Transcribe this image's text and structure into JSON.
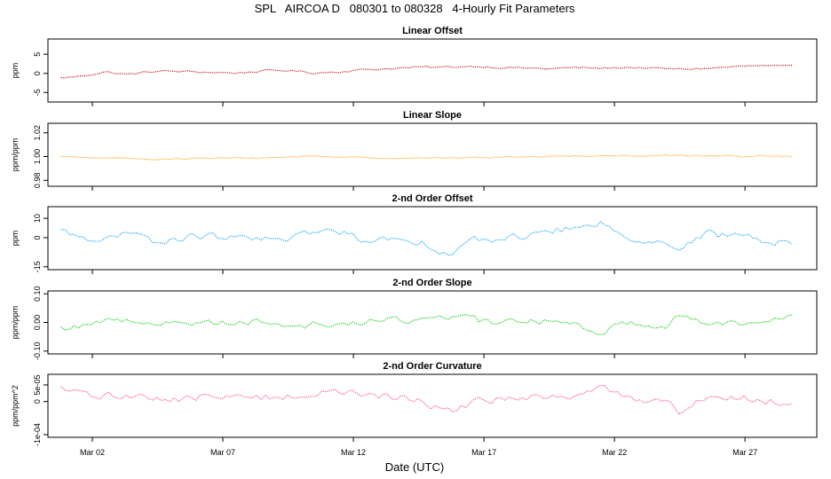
{
  "chart_data": {
    "type": "line",
    "title": "SPL   AIRCOA D   080301 to 080328   4-Hourly Fit Parameters",
    "xlabel": "Date (UTC)",
    "x_ticks": [
      "Mar 02",
      "Mar 07",
      "Mar 12",
      "Mar 17",
      "Mar 22",
      "Mar 27"
    ],
    "x_tick_days": [
      2,
      7,
      12,
      17,
      22,
      27
    ],
    "xlim": [
      0.3,
      29.75
    ],
    "data_x_range": [
      0.8,
      28.9
    ],
    "interval_hours": 4,
    "panels": [
      {
        "title": "Linear Offset",
        "ylabel": "ppm",
        "yticks": [
          "-5",
          "0",
          "5"
        ],
        "ytick_values": [
          -5,
          0,
          5
        ],
        "ylim": [
          -7.5,
          9
        ],
        "color": "#c00000",
        "anchors": [
          [
            0.8,
            -1.2
          ],
          [
            1.5,
            -0.8
          ],
          [
            2.5,
            0.4
          ],
          [
            3.3,
            -0.3
          ],
          [
            4.5,
            0.6
          ],
          [
            6,
            0.4
          ],
          [
            7.5,
            0.1
          ],
          [
            8.5,
            0.6
          ],
          [
            9.5,
            0.8
          ],
          [
            10.5,
            0.1
          ],
          [
            11.5,
            0.5
          ],
          [
            12.5,
            1
          ],
          [
            13.5,
            1.3
          ],
          [
            14.5,
            1.6
          ],
          [
            15.5,
            1.6
          ],
          [
            16.5,
            1.9
          ],
          [
            17.5,
            1.6
          ],
          [
            18.5,
            1.4
          ],
          [
            19.5,
            1.2
          ],
          [
            20.5,
            1.5
          ],
          [
            21.5,
            1.3
          ],
          [
            22.5,
            1.6
          ],
          [
            23.5,
            1.3
          ],
          [
            24.5,
            1.1
          ],
          [
            25.5,
            1.3
          ],
          [
            26.5,
            1.7
          ],
          [
            27.5,
            2
          ],
          [
            28.9,
            1.7
          ]
        ],
        "noise": 0.45
      },
      {
        "title": "Linear Slope",
        "ylabel": "ppm/ppm",
        "yticks": [
          "0.98",
          "1.00",
          "1.02"
        ],
        "ytick_values": [
          0.98,
          1.0,
          1.02
        ],
        "ylim": [
          0.975,
          1.028
        ],
        "color": "#ff9900",
        "anchors": [
          [
            0.8,
            1.0
          ],
          [
            2.5,
            0.9985
          ],
          [
            4.5,
            0.998
          ],
          [
            6.5,
            0.9985
          ],
          [
            8.5,
            0.9988
          ],
          [
            10.5,
            1.0005
          ],
          [
            12.5,
            0.999
          ],
          [
            14.5,
            0.9988
          ],
          [
            16.5,
            0.999
          ],
          [
            18.5,
            1.0
          ],
          [
            20.5,
            1.0005
          ],
          [
            22.5,
            1.0008
          ],
          [
            24.5,
            1.001
          ],
          [
            26.5,
            1.0005
          ],
          [
            28.9,
            1.0
          ]
        ],
        "noise": 0.0009
      },
      {
        "title": "2-nd Order Offset",
        "ylabel": "ppm",
        "yticks": [
          "-15",
          "0",
          "10"
        ],
        "ytick_values": [
          -15,
          0,
          10
        ],
        "ylim": [
          -16.5,
          16
        ],
        "color": "#00a0ff",
        "anchors": [
          [
            0.8,
            3
          ],
          [
            1.5,
            1
          ],
          [
            2.5,
            -1
          ],
          [
            3.5,
            2
          ],
          [
            4.5,
            -3
          ],
          [
            6,
            1
          ],
          [
            7.5,
            0
          ],
          [
            8.5,
            -2
          ],
          [
            10,
            2
          ],
          [
            11.5,
            3
          ],
          [
            12.5,
            -1
          ],
          [
            14,
            0
          ],
          [
            15,
            -4
          ],
          [
            15.8,
            -9
          ],
          [
            16.5,
            -2
          ],
          [
            18,
            0
          ],
          [
            20,
            4
          ],
          [
            21.5,
            7
          ],
          [
            22.5,
            1
          ],
          [
            24,
            -3
          ],
          [
            24.5,
            -6
          ],
          [
            25.5,
            2
          ],
          [
            27,
            0
          ],
          [
            28.9,
            -3
          ]
        ],
        "noise": 3.2
      },
      {
        "title": "2-nd Order Slope",
        "ylabel": "ppm/ppm",
        "yticks": [
          "-0.10",
          "0.00",
          "0.10"
        ],
        "ytick_values": [
          -0.1,
          0.0,
          0.1
        ],
        "ylim": [
          -0.11,
          0.11
        ],
        "color": "#00cc00",
        "anchors": [
          [
            0.8,
            -0.025
          ],
          [
            2,
            0
          ],
          [
            3.5,
            0.01
          ],
          [
            5,
            -0.005
          ],
          [
            6.5,
            0
          ],
          [
            8,
            0.005
          ],
          [
            10,
            -0.01
          ],
          [
            11.5,
            -0.005
          ],
          [
            13,
            0.005
          ],
          [
            14.5,
            0.01
          ],
          [
            15.8,
            0.025
          ],
          [
            17,
            0
          ],
          [
            19,
            0.005
          ],
          [
            20.5,
            0
          ],
          [
            21.5,
            -0.035
          ],
          [
            22.5,
            0
          ],
          [
            24,
            -0.01
          ],
          [
            24.5,
            0.03
          ],
          [
            25.5,
            -0.005
          ],
          [
            27,
            0
          ],
          [
            28.9,
            0.035
          ]
        ],
        "noise": 0.019
      },
      {
        "title": "2-nd Order Curvature",
        "ylabel": "ppm/ppm^2",
        "yticks": [
          "-1e-04",
          "0",
          "5e-05"
        ],
        "ytick_values": [
          -0.0001,
          0,
          5e-05
        ],
        "ylim": [
          -0.000108,
          8.2e-05
        ],
        "color": "#ff4477",
        "anchors": [
          [
            0.8,
            3.5e-05
          ],
          [
            2,
            1.5e-05
          ],
          [
            3.5,
            2e-05
          ],
          [
            5,
            5e-06
          ],
          [
            6.5,
            1.5e-05
          ],
          [
            8,
            1e-05
          ],
          [
            10,
            2e-05
          ],
          [
            11.5,
            3e-05
          ],
          [
            13,
            1.5e-05
          ],
          [
            14.5,
            5e-06
          ],
          [
            15.8,
            -3e-05
          ],
          [
            17,
            5e-06
          ],
          [
            19,
            1e-05
          ],
          [
            20.5,
            2e-05
          ],
          [
            21.5,
            4e-05
          ],
          [
            22.5,
            1e-05
          ],
          [
            24,
            0
          ],
          [
            24.5,
            -3e-05
          ],
          [
            25.5,
            1.5e-05
          ],
          [
            27,
            1e-05
          ],
          [
            28.9,
            -5e-06
          ]
        ],
        "noise": 1.9e-05
      }
    ]
  }
}
